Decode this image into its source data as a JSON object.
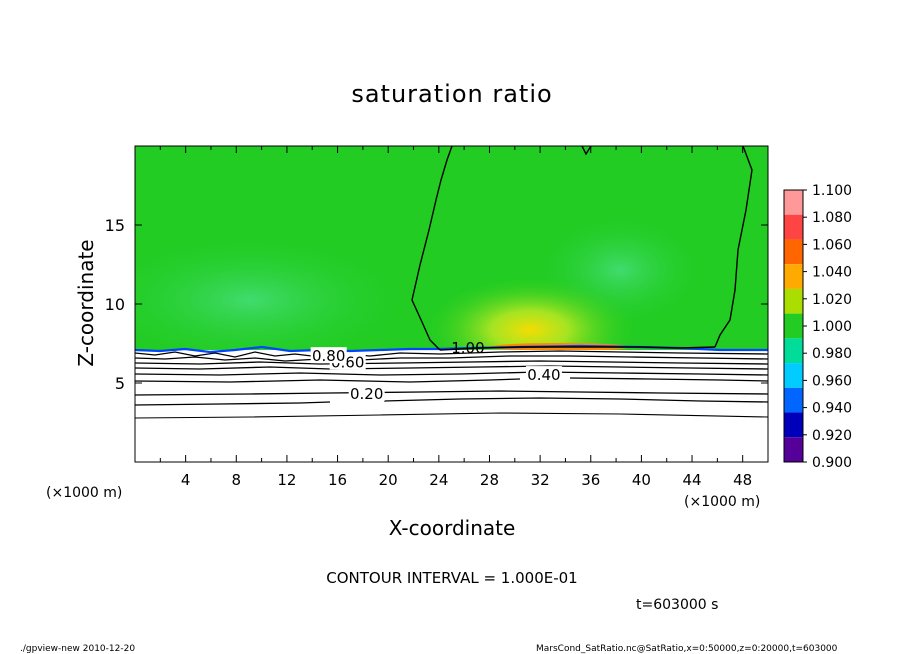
{
  "chart_data": {
    "type": "heatmap",
    "title": "saturation ratio",
    "xlabel": "X-coordinate",
    "ylabel": "Z-coordinate",
    "x_unit": "(×1000 m)",
    "y_unit": "(×1000 m)",
    "xlim": [
      0,
      50
    ],
    "ylim": [
      0,
      20
    ],
    "x_ticks": [
      4,
      8,
      12,
      16,
      20,
      24,
      28,
      32,
      36,
      40,
      44,
      48
    ],
    "y_ticks": [
      5,
      10,
      15
    ],
    "colorbar": {
      "levels": [
        "1.100",
        "1.080",
        "1.060",
        "1.040",
        "1.020",
        "1.000",
        "0.980",
        "0.960",
        "0.940",
        "0.920",
        "0.900"
      ],
      "colors": [
        "#ff9999",
        "#ff4444",
        "#ff6600",
        "#ffaa00",
        "#aadd00",
        "#22cc22",
        "#00dd99",
        "#00ccff",
        "#0066ff",
        "#0000bb",
        "#550099"
      ]
    },
    "contour_labels": [
      {
        "text": "0.20",
        "x": 18.3,
        "y": 4.3
      },
      {
        "text": "0.40",
        "x": 32.3,
        "y": 5.5
      },
      {
        "text": "0.60",
        "x": 16.8,
        "y": 6.3
      },
      {
        "text": "0.80",
        "x": 15.3,
        "y": 6.7
      },
      {
        "text": "1.00",
        "x": 26.3,
        "y": 7.2
      }
    ],
    "contour_interval": "CONTOUR INTERVAL = 1.000E-01",
    "time_label": "t=603000 s",
    "footer_left": "./gpview-new  2010-12-20",
    "footer_right": "MarsCond_SatRatio.nc@SatRatio,x=0:50000,z=0:20000,t=603000"
  }
}
